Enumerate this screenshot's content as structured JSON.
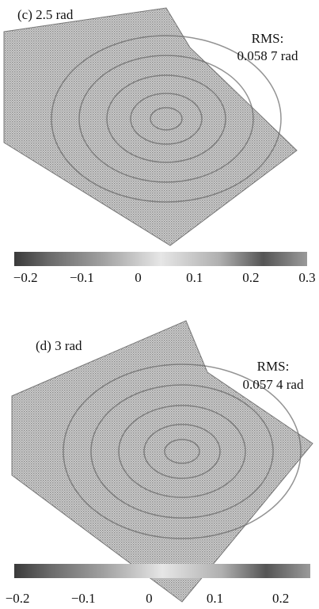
{
  "chart_data": [
    {
      "type": "surface",
      "title": "(c)  2.5 rad",
      "rms_label": "RMS:",
      "rms_value": "0.058 7 rad",
      "clim": [
        -0.22,
        0.3
      ],
      "cticks": [
        {
          "value": -0.2,
          "label": "−0.2"
        },
        {
          "value": -0.1,
          "label": "−0.1"
        },
        0,
        0.1,
        0.2,
        0.3
      ]
    },
    {
      "type": "surface",
      "title": "(d) 3 rad",
      "rms_label": "RMS:",
      "rms_value": "0.057 4 rad",
      "clim": [
        -0.205,
        0.245
      ],
      "cticks": [
        {
          "value": -0.2,
          "label": "−0.2"
        },
        {
          "value": -0.1,
          "label": "−0.1"
        },
        0,
        0.1,
        0.2
      ]
    }
  ]
}
